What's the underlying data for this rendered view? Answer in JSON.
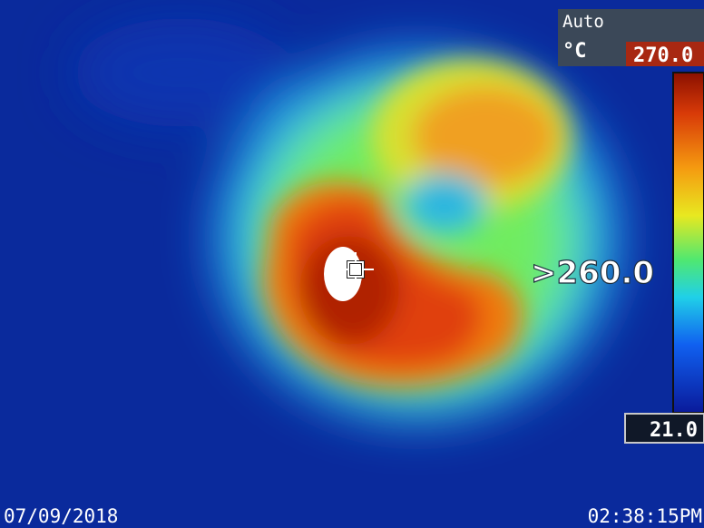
{
  "mode": "Auto",
  "unit": "°C",
  "scale_max": "270.0",
  "scale_min": "21.0",
  "spot_reading": ">260.0",
  "date": "07/09/2018",
  "time": "02:38:15PM"
}
